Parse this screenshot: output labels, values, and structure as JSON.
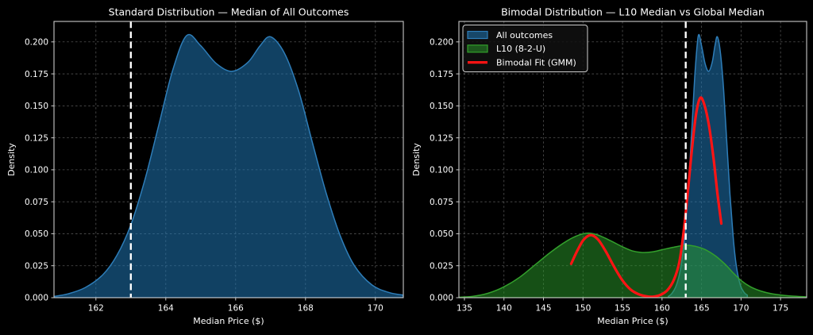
{
  "figure": {
    "background": "#000000",
    "text_color": "#ffffff",
    "grid_color": "#ffffff",
    "spine_color": "#c9c9c9"
  },
  "chart_data": [
    {
      "id": "standard",
      "type": "area",
      "title": "Standard Distribution — Median of All Outcomes",
      "xlabel": "Median Price ($)",
      "ylabel": "Density",
      "xlim": [
        160.8,
        170.8
      ],
      "ylim": [
        0,
        0.216
      ],
      "xticks": [
        162,
        164,
        166,
        168,
        170
      ],
      "xtick_labels": [
        "162",
        "164",
        "166",
        "168",
        "170"
      ],
      "yticks": [
        0,
        0.025,
        0.05,
        0.075,
        0.1,
        0.125,
        0.15,
        0.175,
        0.2
      ],
      "ytick_labels": [
        "0.000",
        "0.025",
        "0.050",
        "0.075",
        "0.100",
        "0.125",
        "0.150",
        "0.175",
        "0.200"
      ],
      "grid": true,
      "legend": null,
      "vline": {
        "x": 163,
        "color": "#ffffff",
        "style": "dashed"
      },
      "series": [
        {
          "name": "All outcomes",
          "kind": "area",
          "fill": "rgba(31,119,180,0.55)",
          "stroke": "#2e7db8",
          "stroke_width": 1.5,
          "points": [
            [
              160.8,
              0.001
            ],
            [
              161.2,
              0.003
            ],
            [
              161.7,
              0.008
            ],
            [
              162.2,
              0.018
            ],
            [
              162.6,
              0.033
            ],
            [
              163.0,
              0.057
            ],
            [
              163.4,
              0.092
            ],
            [
              163.8,
              0.135
            ],
            [
              164.2,
              0.178
            ],
            [
              164.6,
              0.205
            ],
            [
              165.0,
              0.197
            ],
            [
              165.45,
              0.183
            ],
            [
              165.9,
              0.177
            ],
            [
              166.35,
              0.184
            ],
            [
              166.7,
              0.197
            ],
            [
              167.0,
              0.204
            ],
            [
              167.4,
              0.191
            ],
            [
              167.8,
              0.162
            ],
            [
              168.2,
              0.121
            ],
            [
              168.6,
              0.081
            ],
            [
              169.0,
              0.048
            ],
            [
              169.4,
              0.025
            ],
            [
              169.9,
              0.01
            ],
            [
              170.4,
              0.004
            ],
            [
              170.8,
              0.002
            ]
          ]
        }
      ]
    },
    {
      "id": "bimodal",
      "type": "area",
      "title": "Bimodal Distribution — L10 Median vs Global Median",
      "xlabel": "Median Price ($)",
      "ylabel": "Density",
      "xlim": [
        134.3,
        178.3
      ],
      "ylim": [
        0,
        0.216
      ],
      "xticks": [
        135,
        140,
        145,
        150,
        155,
        160,
        165,
        170,
        175
      ],
      "xtick_labels": [
        "135",
        "140",
        "145",
        "150",
        "155",
        "160",
        "165",
        "170",
        "175"
      ],
      "yticks": [
        0,
        0.025,
        0.05,
        0.075,
        0.1,
        0.125,
        0.15,
        0.175,
        0.2
      ],
      "ytick_labels": [
        "0.000",
        "0.025",
        "0.050",
        "0.075",
        "0.100",
        "0.125",
        "0.150",
        "0.175",
        "0.200"
      ],
      "grid": true,
      "legend": {
        "position": "upper-left",
        "entries": [
          {
            "label": "All outcomes",
            "swatch": "patch",
            "fill": "rgba(31,119,180,0.55)",
            "stroke": "#2e7db8"
          },
          {
            "label": "L10 (8-2-U)",
            "swatch": "patch",
            "fill": "rgba(44,160,44,0.5)",
            "stroke": "#33a02c"
          },
          {
            "label": "Bimodal Fit (GMM)",
            "swatch": "line",
            "fill": "none",
            "stroke": "#ff1414"
          }
        ]
      },
      "vline": {
        "x": 163,
        "color": "#ffffff",
        "style": "dashed"
      },
      "series": [
        {
          "name": "All outcomes",
          "kind": "area",
          "fill": "rgba(31,119,180,0.55)",
          "stroke": "#2e7db8",
          "stroke_width": 1.5,
          "points": [
            [
              160.8,
              0.001
            ],
            [
              161.2,
              0.003
            ],
            [
              161.7,
              0.008
            ],
            [
              162.2,
              0.018
            ],
            [
              162.6,
              0.033
            ],
            [
              163.0,
              0.057
            ],
            [
              163.4,
              0.092
            ],
            [
              163.8,
              0.135
            ],
            [
              164.2,
              0.178
            ],
            [
              164.6,
              0.205
            ],
            [
              165.0,
              0.197
            ],
            [
              165.45,
              0.183
            ],
            [
              165.9,
              0.177
            ],
            [
              166.35,
              0.184
            ],
            [
              166.7,
              0.197
            ],
            [
              167.0,
              0.204
            ],
            [
              167.4,
              0.191
            ],
            [
              167.8,
              0.162
            ],
            [
              168.2,
              0.121
            ],
            [
              168.6,
              0.081
            ],
            [
              169.0,
              0.048
            ],
            [
              169.4,
              0.025
            ],
            [
              169.9,
              0.01
            ],
            [
              170.4,
              0.004
            ],
            [
              170.8,
              0.002
            ]
          ]
        },
        {
          "name": "L10 (8-2-U)",
          "kind": "area",
          "fill": "rgba(44,160,44,0.5)",
          "stroke": "#33a02c",
          "stroke_width": 1.5,
          "points": [
            [
              134.3,
              0.0004
            ],
            [
              136,
              0.001
            ],
            [
              138,
              0.0035
            ],
            [
              140,
              0.0085
            ],
            [
              142,
              0.016
            ],
            [
              144,
              0.026
            ],
            [
              146,
              0.036
            ],
            [
              148,
              0.0445
            ],
            [
              149.5,
              0.049
            ],
            [
              150.7,
              0.0505
            ],
            [
              152,
              0.0488
            ],
            [
              153.5,
              0.0445
            ],
            [
              155,
              0.0398
            ],
            [
              156.3,
              0.0365
            ],
            [
              157.5,
              0.0353
            ],
            [
              158.8,
              0.0358
            ],
            [
              160,
              0.0375
            ],
            [
              161.5,
              0.0395
            ],
            [
              163,
              0.041
            ],
            [
              164.2,
              0.0402
            ],
            [
              165.5,
              0.0375
            ],
            [
              166.8,
              0.0325
            ],
            [
              168,
              0.026
            ],
            [
              169,
              0.0195
            ],
            [
              170,
              0.0135
            ],
            [
              171.2,
              0.0085
            ],
            [
              172.5,
              0.0052
            ],
            [
              174,
              0.003
            ],
            [
              176,
              0.0015
            ],
            [
              178.3,
              0.0007
            ]
          ]
        },
        {
          "name": "Bimodal Fit (GMM)",
          "kind": "line",
          "fill": "none",
          "stroke": "#ff1414",
          "stroke_width": 3.2,
          "points": [
            [
              148.5,
              0.0265
            ],
            [
              149.3,
              0.037
            ],
            [
              150.1,
              0.0455
            ],
            [
              151.0,
              0.049
            ],
            [
              151.9,
              0.0455
            ],
            [
              152.9,
              0.036
            ],
            [
              154,
              0.0235
            ],
            [
              155,
              0.0135
            ],
            [
              156,
              0.0065
            ],
            [
              157,
              0.0028
            ],
            [
              158,
              0.0011
            ],
            [
              158.9,
              0.0008
            ],
            [
              159.8,
              0.0022
            ],
            [
              160.7,
              0.006
            ],
            [
              161.5,
              0.014
            ],
            [
              162.2,
              0.028
            ],
            [
              162.8,
              0.055
            ],
            [
              163.3,
              0.085
            ],
            [
              163.8,
              0.117
            ],
            [
              164.3,
              0.143
            ],
            [
              164.8,
              0.156
            ],
            [
              165.3,
              0.152
            ],
            [
              165.9,
              0.136
            ],
            [
              166.5,
              0.11
            ],
            [
              167.0,
              0.082
            ],
            [
              167.5,
              0.058
            ]
          ]
        }
      ]
    }
  ]
}
